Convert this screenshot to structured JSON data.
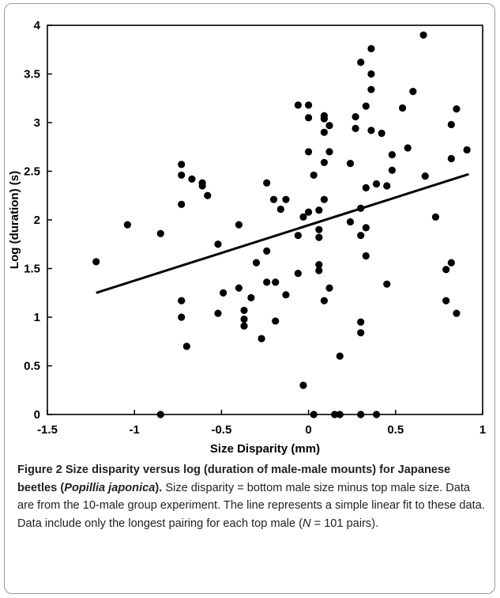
{
  "chart_data": {
    "type": "scatter",
    "xlabel": "Size Disparity (mm)",
    "ylabel": "Log (duration) (s)",
    "xlim": [
      -1.5,
      1
    ],
    "ylim": [
      0,
      4
    ],
    "x_ticks": [
      "-1.5",
      "-1",
      "-0.5",
      "0",
      "0.5",
      "1"
    ],
    "y_ticks": [
      "0",
      "0.5",
      "1",
      "1.5",
      "2",
      "2.5",
      "3",
      "3.5",
      "4"
    ],
    "grid": false,
    "fit_line": {
      "x": [
        -1.22,
        0.92
      ],
      "y": [
        1.25,
        2.47
      ]
    },
    "points": [
      {
        "x": -1.22,
        "y": 1.57
      },
      {
        "x": -1.04,
        "y": 1.95
      },
      {
        "x": -0.85,
        "y": 1.86
      },
      {
        "x": -0.85,
        "y": 0.0
      },
      {
        "x": -0.73,
        "y": 2.57
      },
      {
        "x": -0.73,
        "y": 2.46
      },
      {
        "x": -0.73,
        "y": 2.16
      },
      {
        "x": -0.73,
        "y": 1.17
      },
      {
        "x": -0.73,
        "y": 1.0
      },
      {
        "x": -0.7,
        "y": 0.7
      },
      {
        "x": -0.67,
        "y": 2.42
      },
      {
        "x": -0.61,
        "y": 2.38
      },
      {
        "x": -0.61,
        "y": 2.35
      },
      {
        "x": -0.58,
        "y": 2.25
      },
      {
        "x": -0.52,
        "y": 1.75
      },
      {
        "x": -0.52,
        "y": 1.04
      },
      {
        "x": -0.49,
        "y": 1.25
      },
      {
        "x": -0.4,
        "y": 1.95
      },
      {
        "x": -0.4,
        "y": 1.3
      },
      {
        "x": -0.37,
        "y": 1.07
      },
      {
        "x": -0.37,
        "y": 0.98
      },
      {
        "x": -0.37,
        "y": 0.91
      },
      {
        "x": -0.33,
        "y": 1.2
      },
      {
        "x": -0.3,
        "y": 1.56
      },
      {
        "x": -0.27,
        "y": 0.78
      },
      {
        "x": -0.24,
        "y": 2.38
      },
      {
        "x": -0.24,
        "y": 1.68
      },
      {
        "x": -0.24,
        "y": 1.36
      },
      {
        "x": -0.2,
        "y": 2.21
      },
      {
        "x": -0.19,
        "y": 1.36
      },
      {
        "x": -0.19,
        "y": 0.96
      },
      {
        "x": -0.16,
        "y": 2.11
      },
      {
        "x": -0.13,
        "y": 2.21
      },
      {
        "x": -0.13,
        "y": 1.23
      },
      {
        "x": -0.06,
        "y": 3.18
      },
      {
        "x": -0.06,
        "y": 1.84
      },
      {
        "x": -0.06,
        "y": 1.45
      },
      {
        "x": -0.03,
        "y": 2.03
      },
      {
        "x": -0.03,
        "y": 0.3
      },
      {
        "x": 0.0,
        "y": 3.18
      },
      {
        "x": 0.0,
        "y": 3.05
      },
      {
        "x": 0.0,
        "y": 2.7
      },
      {
        "x": 0.0,
        "y": 2.08
      },
      {
        "x": 0.03,
        "y": 2.46
      },
      {
        "x": 0.03,
        "y": 0.0
      },
      {
        "x": 0.06,
        "y": 2.1
      },
      {
        "x": 0.06,
        "y": 1.9
      },
      {
        "x": 0.06,
        "y": 1.82
      },
      {
        "x": 0.06,
        "y": 1.54
      },
      {
        "x": 0.06,
        "y": 1.48
      },
      {
        "x": 0.09,
        "y": 3.07
      },
      {
        "x": 0.09,
        "y": 3.04
      },
      {
        "x": 0.09,
        "y": 2.9
      },
      {
        "x": 0.09,
        "y": 2.59
      },
      {
        "x": 0.09,
        "y": 2.21
      },
      {
        "x": 0.09,
        "y": 1.17
      },
      {
        "x": 0.12,
        "y": 2.97
      },
      {
        "x": 0.12,
        "y": 2.7
      },
      {
        "x": 0.12,
        "y": 1.3
      },
      {
        "x": 0.15,
        "y": 0.0
      },
      {
        "x": 0.18,
        "y": 0.6
      },
      {
        "x": 0.18,
        "y": 0.0
      },
      {
        "x": 0.24,
        "y": 2.58
      },
      {
        "x": 0.24,
        "y": 1.98
      },
      {
        "x": 0.27,
        "y": 3.06
      },
      {
        "x": 0.27,
        "y": 2.94
      },
      {
        "x": 0.3,
        "y": 3.62
      },
      {
        "x": 0.3,
        "y": 2.12
      },
      {
        "x": 0.3,
        "y": 1.84
      },
      {
        "x": 0.3,
        "y": 0.95
      },
      {
        "x": 0.3,
        "y": 0.84
      },
      {
        "x": 0.3,
        "y": 0.0
      },
      {
        "x": 0.33,
        "y": 3.17
      },
      {
        "x": 0.33,
        "y": 2.33
      },
      {
        "x": 0.33,
        "y": 1.92
      },
      {
        "x": 0.33,
        "y": 1.63
      },
      {
        "x": 0.36,
        "y": 3.76
      },
      {
        "x": 0.36,
        "y": 3.5
      },
      {
        "x": 0.36,
        "y": 3.34
      },
      {
        "x": 0.36,
        "y": 2.92
      },
      {
        "x": 0.39,
        "y": 2.37
      },
      {
        "x": 0.39,
        "y": 0.0
      },
      {
        "x": 0.42,
        "y": 2.89
      },
      {
        "x": 0.45,
        "y": 2.35
      },
      {
        "x": 0.45,
        "y": 1.34
      },
      {
        "x": 0.48,
        "y": 2.67
      },
      {
        "x": 0.48,
        "y": 2.51
      },
      {
        "x": 0.54,
        "y": 3.15
      },
      {
        "x": 0.57,
        "y": 2.74
      },
      {
        "x": 0.6,
        "y": 3.32
      },
      {
        "x": 0.66,
        "y": 3.9
      },
      {
        "x": 0.67,
        "y": 2.45
      },
      {
        "x": 0.73,
        "y": 2.03
      },
      {
        "x": 0.79,
        "y": 1.49
      },
      {
        "x": 0.79,
        "y": 1.17
      },
      {
        "x": 0.82,
        "y": 2.98
      },
      {
        "x": 0.82,
        "y": 2.63
      },
      {
        "x": 0.82,
        "y": 1.56
      },
      {
        "x": 0.85,
        "y": 3.14
      },
      {
        "x": 0.85,
        "y": 1.04
      },
      {
        "x": 0.91,
        "y": 2.72
      }
    ]
  },
  "caption": {
    "label": "Figure 2",
    "title_a": " Size disparity versus log (duration of male-male mounts) for Japanese beetles (",
    "species": "Popillia japonica",
    "title_b": ").",
    "body_a": " Size disparity = bottom male size minus top male size. Data are from the 10-male group experiment. The line represents a simple linear fit to these data. Data include only the longest pairing for each top male (",
    "n_symbol": "N",
    "body_b": " = 101 pairs)."
  }
}
